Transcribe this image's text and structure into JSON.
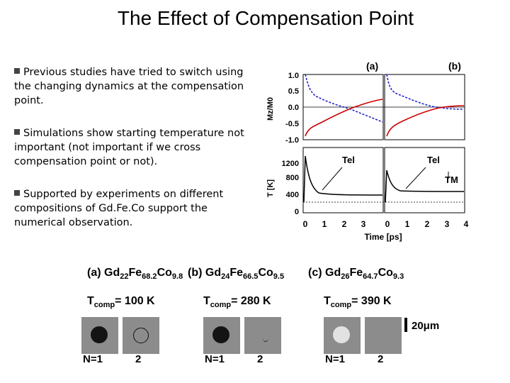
{
  "slide": {
    "title": "The Effect of Compensation Point"
  },
  "bullets": [
    "Previous studies have tried to switch using the changing dynamics at the compensation point.",
    "Simulations show starting temperature not important (not important if we cross compensation point or not).",
    "Supported by experiments on different compositions of Gd.Fe.Co support the numerical observation."
  ],
  "figure": {
    "panel_labels": [
      "(a)",
      "(b)"
    ],
    "top_ylabel": "Mz/M0",
    "top_yticks": [
      "1.0",
      "0.5",
      "0.0",
      "-0.5",
      "-1.0"
    ],
    "bottom_ylabel": "T [K]",
    "bottom_yticks": [
      "1200",
      "800",
      "400",
      "0"
    ],
    "xticks_a": [
      "0",
      "1",
      "2",
      "3"
    ],
    "xticks_b": [
      "0",
      "1",
      "2",
      "3",
      "4"
    ],
    "xlabel": "Time [ps]",
    "annotations": {
      "tel_a": "Tel",
      "tel_b": "Tel",
      "tm": "TM"
    }
  },
  "experiment": {
    "samples": [
      {
        "label": "(a) Gd",
        "gd": "22",
        "fe": "68.2",
        "co": "9.8",
        "tcomp_value": "= 100 K"
      },
      {
        "label": "(b) Gd",
        "gd": "24",
        "fe": "66.5",
        "co": "9.5",
        "tcomp_value": "= 280 K"
      },
      {
        "label": "(c) Gd",
        "gd": "26",
        "fe": "64.7",
        "co": "9.3",
        "tcomp_value": "= 390 K"
      }
    ],
    "tcomp_prefix": "T",
    "tcomp_sub": "comp",
    "fe_symbol": "Fe",
    "co_symbol": "Co",
    "n_labels": [
      "N=1",
      "2"
    ],
    "scale_bar": "20μm",
    "colors": {
      "magnetization_red": "#cc0000",
      "magnetization_blue": "#2222cc",
      "tile_gray": "#8c8c8c"
    }
  }
}
